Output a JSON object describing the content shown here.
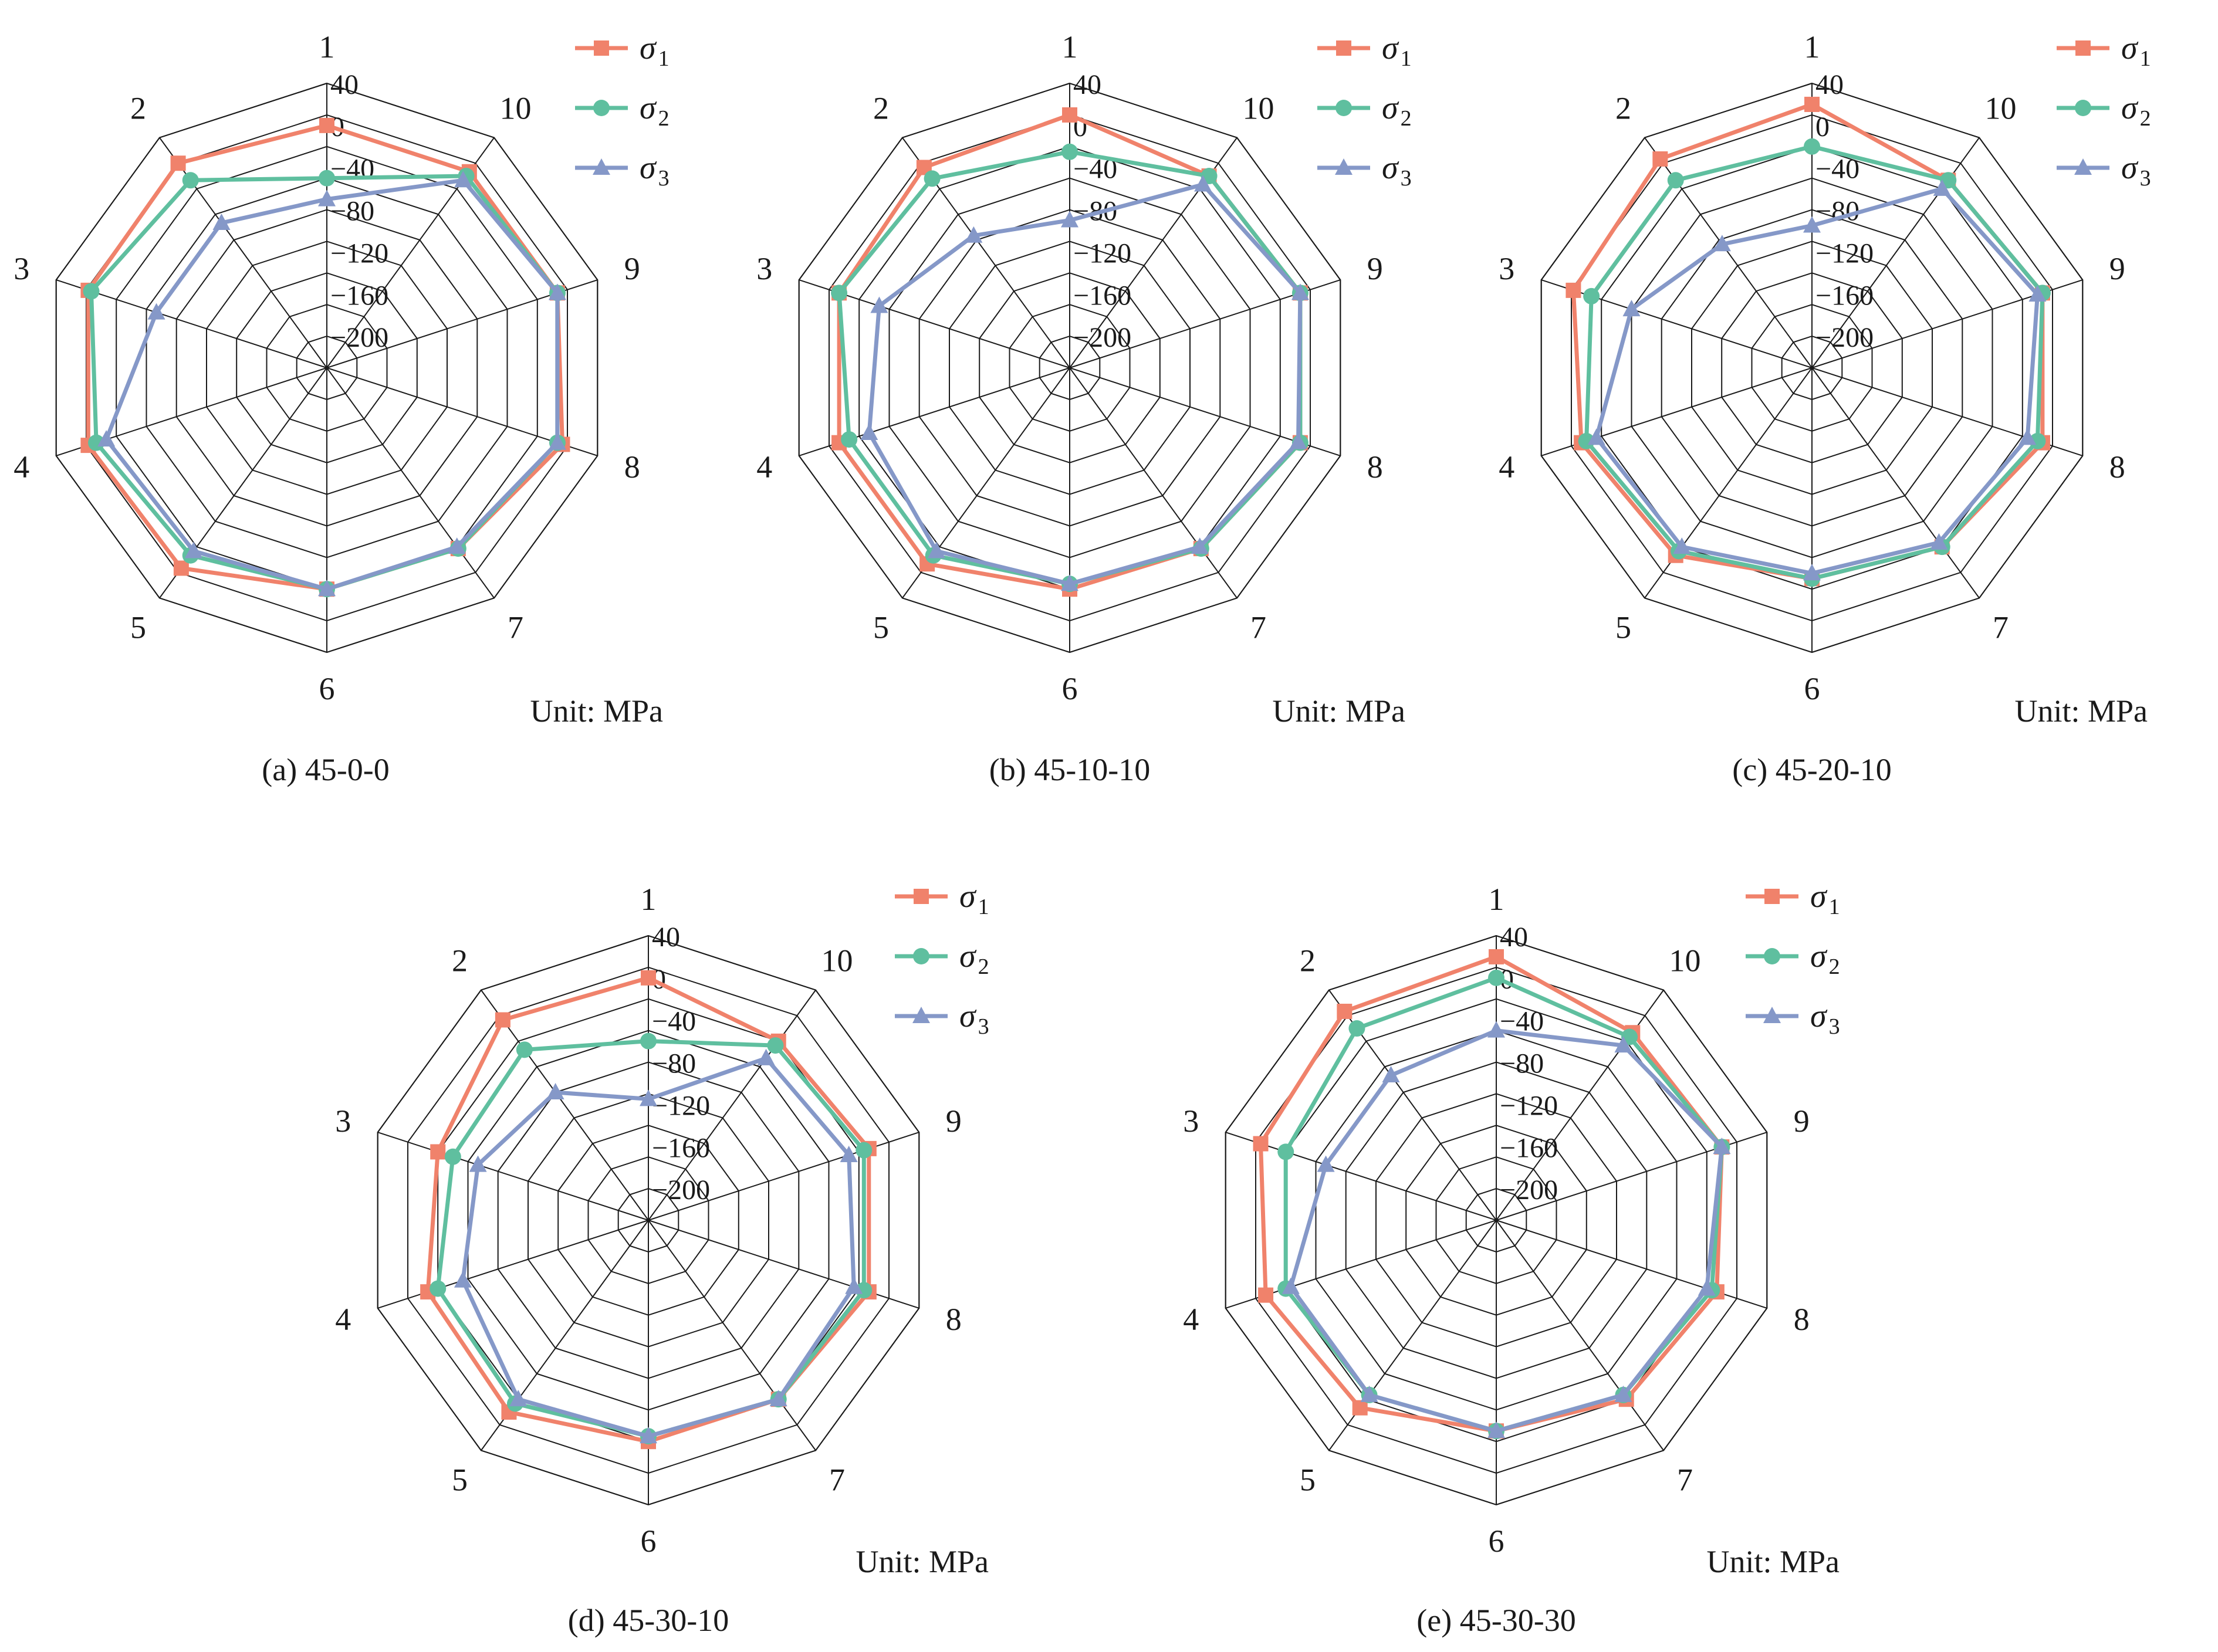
{
  "legend_entries": [
    {
      "symbol": "σ",
      "subscript": "1",
      "color": "#f0826b",
      "marker": "square"
    },
    {
      "symbol": "σ",
      "subscript": "2",
      "color": "#5fbf9f",
      "marker": "circle"
    },
    {
      "symbol": "σ",
      "subscript": "3",
      "color": "#8598c8",
      "marker": "triangle"
    }
  ],
  "chart_data": [
    {
      "type": "radar",
      "caption": "(a) 45-0-0",
      "unit_label": "Unit: MPa",
      "categories": [
        "1",
        "2",
        "3",
        "4",
        "5",
        "6",
        "7",
        "8",
        "9",
        "10"
      ],
      "radial_ticks": [
        "40",
        "0",
        "−40",
        "−80",
        "−120",
        "−160",
        "−200"
      ],
      "radial_range": [
        -230,
        40
      ],
      "grid": true,
      "series": [
        {
          "name": "σ1",
          "values": [
            0,
            10,
            8,
            8,
            5,
            -20,
            -18,
            5,
            0,
            0
          ]
        },
        {
          "name": "σ2",
          "values": [
            -50,
            -10,
            5,
            0,
            -10,
            -20,
            -18,
            0,
            0,
            -5
          ]
        },
        {
          "name": "σ3",
          "values": [
            -70,
            -60,
            -60,
            -10,
            -15,
            -20,
            -20,
            0,
            0,
            -10
          ]
        }
      ]
    },
    {
      "type": "radar",
      "caption": "(b) 45-10-10",
      "unit_label": "Unit: MPa",
      "categories": [
        "1",
        "2",
        "3",
        "4",
        "5",
        "6",
        "7",
        "8",
        "9",
        "10"
      ],
      "radial_ticks": [
        "40",
        "0",
        "−40",
        "−80",
        "−120",
        "−160",
        "−200"
      ],
      "radial_range": [
        -230,
        40
      ],
      "grid": true,
      "series": [
        {
          "name": "σ1",
          "values": [
            10,
            5,
            0,
            0,
            0,
            -20,
            -18,
            0,
            0,
            -5
          ]
        },
        {
          "name": "σ2",
          "values": [
            -25,
            -8,
            0,
            -10,
            -10,
            -25,
            -18,
            0,
            0,
            -5
          ]
        },
        {
          "name": "σ3",
          "values": [
            -90,
            -75,
            -40,
            -30,
            -15,
            -25,
            -20,
            -2,
            0,
            -15
          ]
        }
      ]
    },
    {
      "type": "radar",
      "caption": "(c) 45-20-10",
      "unit_label": "Unit: MPa",
      "categories": [
        "1",
        "2",
        "3",
        "4",
        "5",
        "6",
        "7",
        "8",
        "9",
        "10"
      ],
      "radial_ticks": [
        "40",
        "0",
        "−40",
        "−80",
        "−120",
        "−160",
        "−200"
      ],
      "radial_range": [
        -230,
        40
      ],
      "grid": true,
      "series": [
        {
          "name": "σ1",
          "values": [
            20,
            15,
            8,
            0,
            -10,
            -30,
            -20,
            0,
            0,
            -10
          ]
        },
        {
          "name": "σ2",
          "values": [
            -20,
            -10,
            -10,
            -5,
            -15,
            -30,
            -20,
            -5,
            0,
            -10
          ]
        },
        {
          "name": "σ3",
          "values": [
            -95,
            -85,
            -50,
            -15,
            -20,
            -35,
            -25,
            -15,
            -5,
            -20
          ]
        }
      ]
    },
    {
      "type": "radar",
      "caption": "(d) 45-30-10",
      "unit_label": "Unit: MPa",
      "categories": [
        "1",
        "2",
        "3",
        "4",
        "5",
        "6",
        "7",
        "8",
        "9",
        "10"
      ],
      "radial_ticks": [
        "40",
        "0",
        "−40",
        "−80",
        "−120",
        "−160",
        "−200"
      ],
      "radial_range": [
        -230,
        40
      ],
      "grid": true,
      "series": [
        {
          "name": "σ1",
          "values": [
            0,
            5,
            -20,
            -10,
            -5,
            -20,
            -20,
            -10,
            -10,
            -20
          ]
        },
        {
          "name": "σ2",
          "values": [
            -60,
            -30,
            -35,
            -20,
            -15,
            -25,
            -20,
            -15,
            -15,
            -25
          ]
        },
        {
          "name": "σ3",
          "values": [
            -115,
            -80,
            -60,
            -45,
            -20,
            -25,
            -20,
            -25,
            -30,
            -40
          ]
        }
      ]
    },
    {
      "type": "radar",
      "caption": "(e) 45-30-30",
      "unit_label": "Unit: MPa",
      "categories": [
        "1",
        "2",
        "3",
        "4",
        "5",
        "6",
        "7",
        "8",
        "9",
        "10"
      ],
      "radial_ticks": [
        "40",
        "0",
        "−40",
        "−80",
        "−120",
        "−160",
        "−200"
      ],
      "radial_range": [
        -230,
        40
      ],
      "grid": true,
      "series": [
        {
          "name": "σ1",
          "values": [
            20,
            15,
            5,
            0,
            -10,
            -30,
            -20,
            -10,
            -5,
            -10
          ]
        },
        {
          "name": "σ2",
          "values": [
            0,
            -5,
            -20,
            -20,
            -25,
            -30,
            -25,
            -15,
            -5,
            -15
          ]
        },
        {
          "name": "σ3",
          "values": [
            -50,
            -60,
            -60,
            -25,
            -25,
            -30,
            -25,
            -20,
            -5,
            -25
          ]
        }
      ]
    }
  ]
}
